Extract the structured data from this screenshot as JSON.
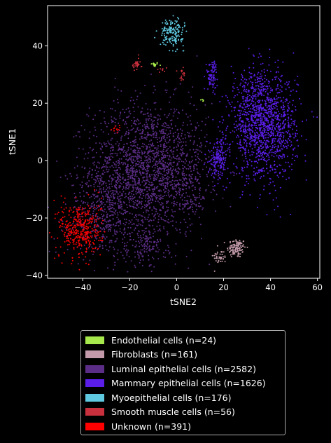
{
  "chart_data": {
    "type": "scatter",
    "title": "",
    "xlabel": "tSNE2",
    "ylabel": "tSNE1",
    "xlim": [
      -55,
      61
    ],
    "ylim": [
      -41,
      54
    ],
    "xticks": [
      -40,
      -20,
      0,
      20,
      40,
      60
    ],
    "yticks": [
      -40,
      -20,
      0,
      20,
      40
    ],
    "xtick_labels": [
      "−40",
      "−20",
      "0",
      "20",
      "40",
      "60"
    ],
    "ytick_labels": [
      "−40",
      "−20",
      "0",
      "20",
      "40"
    ],
    "grid": false,
    "legend_position": "below",
    "series": [
      {
        "name": "Endothelial cells (n=24)",
        "color": "#a6e84b",
        "n": 24,
        "clusters": [
          {
            "cx": -9.5,
            "cy": 33.5,
            "sx": 0.9,
            "sy": 0.4,
            "w": 0.8
          },
          {
            "cx": 11,
            "cy": 21,
            "sx": 0.4,
            "sy": 0.4,
            "w": 0.2
          }
        ]
      },
      {
        "name": "Fibroblasts (n=161)",
        "color": "#c29aa9",
        "n": 161,
        "clusters": [
          {
            "cx": 25.5,
            "cy": -30.5,
            "sx": 2.0,
            "sy": 1.7,
            "w": 0.75
          },
          {
            "cx": 18.5,
            "cy": -33.5,
            "sx": 1.5,
            "sy": 1.2,
            "w": 0.25
          }
        ]
      },
      {
        "name": "Luminal epithelial cells (n=2582)",
        "color": "#5b2d86",
        "n": 2582,
        "clusters": [
          {
            "cx": -12,
            "cy": -3,
            "sx": 12.5,
            "sy": 11.5,
            "w": 0.75
          },
          {
            "cx": -30,
            "cy": -18,
            "sx": 8,
            "sy": 8,
            "w": 0.17
          },
          {
            "cx": -13,
            "cy": -30,
            "sx": 4.5,
            "sy": 3.5,
            "w": 0.05
          },
          {
            "cx": 7,
            "cy": -10,
            "sx": 3.5,
            "sy": 5,
            "w": 0.03
          }
        ]
      },
      {
        "name": "Mammary epithelial cells (n=1626)",
        "color": "#5a1ee8",
        "n": 1626,
        "clusters": [
          {
            "cx": 37,
            "cy": 12,
            "sx": 7,
            "sy": 9,
            "w": 0.82
          },
          {
            "cx": 32,
            "cy": 25,
            "sx": 3,
            "sy": 4,
            "w": 0.03
          },
          {
            "cx": 15,
            "cy": 30,
            "sx": 1.2,
            "sy": 2.5,
            "w": 0.05
          },
          {
            "cx": 18,
            "cy": 1,
            "sx": 2,
            "sy": 3.5,
            "w": 0.1
          }
        ]
      },
      {
        "name": "Myoepithelial cells (n=176)",
        "color": "#5ec9e0",
        "n": 176,
        "clusters": [
          {
            "cx": -2,
            "cy": 44.5,
            "sx": 2.5,
            "sy": 2.3,
            "w": 1.0
          }
        ]
      },
      {
        "name": "Smooth muscle cells (n=56)",
        "color": "#c9303d",
        "n": 56,
        "clusters": [
          {
            "cx": -17,
            "cy": 33.5,
            "sx": 1.0,
            "sy": 1.0,
            "w": 0.55
          },
          {
            "cx": 2,
            "cy": 29.5,
            "sx": 1.0,
            "sy": 1.5,
            "w": 0.3
          },
          {
            "cx": -5,
            "cy": 31.5,
            "sx": 1.5,
            "sy": 0.6,
            "w": 0.15
          }
        ]
      },
      {
        "name": "Unknown (n=391)",
        "color": "#ff0000",
        "n": 391,
        "clusters": [
          {
            "cx": -41,
            "cy": -24,
            "sx": 4.5,
            "sy": 5,
            "w": 0.97
          },
          {
            "cx": -25,
            "cy": 11,
            "sx": 1,
            "sy": 1,
            "w": 0.03
          }
        ]
      }
    ]
  }
}
